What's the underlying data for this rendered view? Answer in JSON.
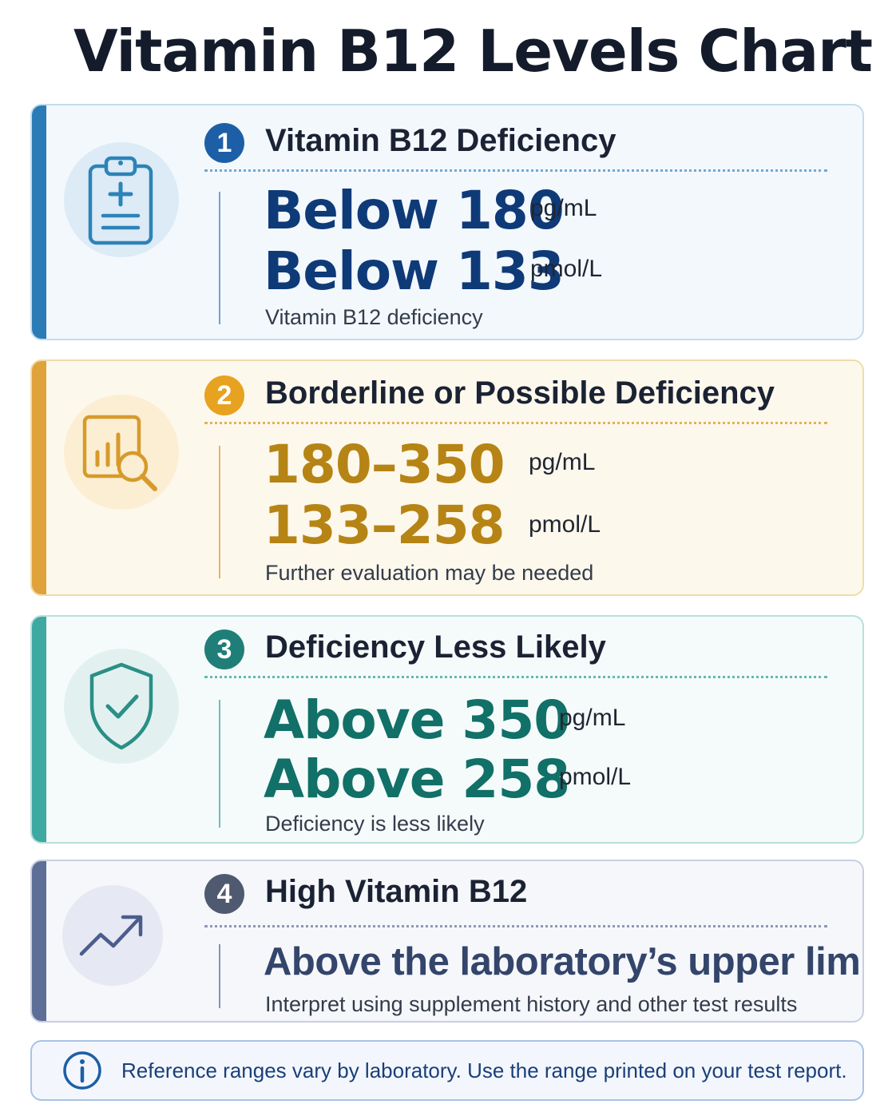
{
  "title": "Vitamin B12 Levels Chart",
  "colors": {
    "deficiency": "#1d5fa6",
    "borderline": "#e7a21f",
    "less_likely": "#1f7f78",
    "high": "#4f5a71",
    "info": "#1a3f7a"
  },
  "cards": [
    {
      "number": "1",
      "heading": "Vitamin B12 Deficiency",
      "icon": "clipboard-icon",
      "value_1": "Below 180",
      "unit_1": "pg/mL",
      "value_2": "Below 133",
      "unit_2": "pmol/L",
      "note": "Vitamin B12 deficiency"
    },
    {
      "number": "2",
      "heading": "Borderline or Possible Deficiency",
      "icon": "chart-magnifier-icon",
      "value_1": "180–350",
      "unit_1": "pg/mL",
      "value_2": "133–258",
      "unit_2": "pmol/L",
      "note": "Further evaluation may be needed"
    },
    {
      "number": "3",
      "heading": "Deficiency Less Likely",
      "icon": "shield-check-icon",
      "value_1": "Above 350",
      "unit_1": "pg/mL",
      "value_2": "Above 258",
      "unit_2": "pmol/L",
      "note": "Deficiency is less likely"
    },
    {
      "number": "4",
      "heading": "High Vitamin B12",
      "icon": "trend-up-icon",
      "value_1": "Above the laboratory’s upper limit",
      "note": "Interpret using supplement history and other test results"
    }
  ],
  "info": {
    "icon": "info-icon",
    "text": "Reference ranges vary by laboratory. Use the range printed on your test report."
  }
}
